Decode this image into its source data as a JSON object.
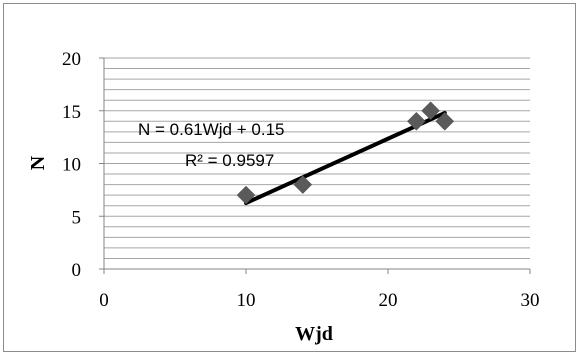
{
  "chart_data": {
    "type": "scatter",
    "xlabel": "Wjd",
    "ylabel": "N",
    "xlim": [
      0,
      30
    ],
    "ylim": [
      0,
      20
    ],
    "x_ticks": [
      "0",
      "10",
      "20",
      "30"
    ],
    "y_ticks": [
      "0",
      "5",
      "10",
      "15",
      "20"
    ],
    "y_minor_grid_step": 1,
    "grid": true,
    "points": [
      {
        "x": 10,
        "y": 7
      },
      {
        "x": 14,
        "y": 8
      },
      {
        "x": 22,
        "y": 14
      },
      {
        "x": 23,
        "y": 15
      },
      {
        "x": 24,
        "y": 14
      }
    ],
    "trendline": {
      "slope": 0.61,
      "intercept": 0.15,
      "x_start": 10,
      "x_end": 24
    },
    "annotations": {
      "equation": "N = 0.61Wjd + 0.15",
      "r_squared": "R² = 0.9597"
    },
    "colors": {
      "marker": "#5a5a5a",
      "trendline": "#000000",
      "grid": "#a6a6a6"
    }
  }
}
